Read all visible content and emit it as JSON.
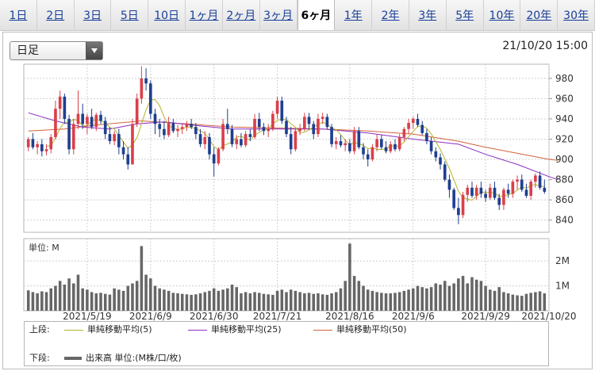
{
  "tabs": [
    {
      "label": "1日"
    },
    {
      "label": "2日"
    },
    {
      "label": "3日"
    },
    {
      "label": "5日"
    },
    {
      "label": "10日"
    },
    {
      "label": "1ヶ月"
    },
    {
      "label": "2ヶ月"
    },
    {
      "label": "3ヶ月"
    },
    {
      "label": "6ヶ月",
      "active": true
    },
    {
      "label": "1年"
    },
    {
      "label": "2年"
    },
    {
      "label": "3年"
    },
    {
      "label": "5年"
    },
    {
      "label": "10年"
    },
    {
      "label": "20年"
    },
    {
      "label": "30年"
    }
  ],
  "period_select": {
    "value": "日足"
  },
  "timestamp": "21/10/20 15:00",
  "colors": {
    "up": "#d9404a",
    "down": "#1f3f8f",
    "ma5": "#b5b52a",
    "ma25": "#8a2fc6",
    "ma50": "#d2623a",
    "volume": "#666666"
  },
  "legend": {
    "upper_label": "上段:",
    "lower_label": "下段:",
    "ma5": "単純移動平均(5)",
    "ma25": "単純移動平均(25)",
    "ma50": "単純移動平均(50)",
    "volume": "出来高 単位:(M株/口/枚)"
  },
  "chart_data": {
    "type": "candlestick",
    "price_axis": {
      "ylim": [
        828,
        994
      ],
      "ticks": [
        840,
        860,
        880,
        900,
        920,
        940,
        960,
        980
      ]
    },
    "volume_axis": {
      "unit_label": "単位: M",
      "ylim": [
        0,
        2.9
      ],
      "ticks": [
        {
          "v": 1,
          "label": "1M"
        },
        {
          "v": 2,
          "label": "2M"
        }
      ]
    },
    "x_labels": [
      "2021/5/19",
      "2021/6/9",
      "2021/6/30",
      "2021/7/21",
      "2021/8/16",
      "2021/9/6",
      "2021/9/29",
      "2021/10/20"
    ],
    "x_label_index": [
      13,
      27,
      41,
      55,
      71,
      85,
      101,
      115
    ],
    "candles": [
      {
        "o": 912,
        "h": 922,
        "l": 908,
        "c": 920,
        "v": 0.82
      },
      {
        "o": 920,
        "h": 926,
        "l": 910,
        "c": 912,
        "v": 0.75
      },
      {
        "o": 912,
        "h": 918,
        "l": 905,
        "c": 915,
        "v": 0.7
      },
      {
        "o": 915,
        "h": 920,
        "l": 903,
        "c": 908,
        "v": 0.78
      },
      {
        "o": 908,
        "h": 915,
        "l": 904,
        "c": 910,
        "v": 0.75
      },
      {
        "o": 910,
        "h": 925,
        "l": 906,
        "c": 922,
        "v": 0.9
      },
      {
        "o": 922,
        "h": 958,
        "l": 920,
        "c": 950,
        "v": 1.0
      },
      {
        "o": 950,
        "h": 968,
        "l": 940,
        "c": 962,
        "v": 1.2
      },
      {
        "o": 962,
        "h": 965,
        "l": 935,
        "c": 940,
        "v": 1.05
      },
      {
        "o": 940,
        "h": 944,
        "l": 905,
        "c": 910,
        "v": 1.3
      },
      {
        "o": 910,
        "h": 940,
        "l": 905,
        "c": 935,
        "v": 1.1
      },
      {
        "o": 935,
        "h": 968,
        "l": 930,
        "c": 945,
        "v": 1.45
      },
      {
        "o": 945,
        "h": 955,
        "l": 930,
        "c": 935,
        "v": 0.9
      },
      {
        "o": 935,
        "h": 945,
        "l": 925,
        "c": 942,
        "v": 0.85
      },
      {
        "o": 942,
        "h": 950,
        "l": 930,
        "c": 932,
        "v": 0.75
      },
      {
        "o": 932,
        "h": 946,
        "l": 928,
        "c": 944,
        "v": 0.7
      },
      {
        "o": 944,
        "h": 948,
        "l": 935,
        "c": 938,
        "v": 0.72
      },
      {
        "o": 938,
        "h": 942,
        "l": 920,
        "c": 925,
        "v": 0.68
      },
      {
        "o": 925,
        "h": 932,
        "l": 915,
        "c": 918,
        "v": 0.65
      },
      {
        "o": 918,
        "h": 928,
        "l": 914,
        "c": 925,
        "v": 0.9
      },
      {
        "o": 925,
        "h": 930,
        "l": 905,
        "c": 912,
        "v": 0.85
      },
      {
        "o": 912,
        "h": 918,
        "l": 900,
        "c": 905,
        "v": 0.8
      },
      {
        "o": 905,
        "h": 912,
        "l": 890,
        "c": 895,
        "v": 1.0
      },
      {
        "o": 895,
        "h": 940,
        "l": 895,
        "c": 935,
        "v": 1.1
      },
      {
        "o": 935,
        "h": 965,
        "l": 932,
        "c": 960,
        "v": 1.2
      },
      {
        "o": 960,
        "h": 992,
        "l": 955,
        "c": 980,
        "v": 2.6
      },
      {
        "o": 980,
        "h": 990,
        "l": 968,
        "c": 975,
        "v": 1.45
      },
      {
        "o": 975,
        "h": 978,
        "l": 940,
        "c": 945,
        "v": 1.3
      },
      {
        "o": 945,
        "h": 950,
        "l": 925,
        "c": 935,
        "v": 1.0
      },
      {
        "o": 935,
        "h": 940,
        "l": 922,
        "c": 930,
        "v": 0.9
      },
      {
        "o": 930,
        "h": 938,
        "l": 920,
        "c": 924,
        "v": 0.85
      },
      {
        "o": 924,
        "h": 942,
        "l": 922,
        "c": 936,
        "v": 0.8
      },
      {
        "o": 936,
        "h": 940,
        "l": 926,
        "c": 928,
        "v": 0.72
      },
      {
        "o": 928,
        "h": 934,
        "l": 922,
        "c": 930,
        "v": 0.7
      },
      {
        "o": 930,
        "h": 935,
        "l": 925,
        "c": 932,
        "v": 0.68
      },
      {
        "o": 932,
        "h": 938,
        "l": 928,
        "c": 935,
        "v": 0.66
      },
      {
        "o": 935,
        "h": 940,
        "l": 930,
        "c": 932,
        "v": 0.64
      },
      {
        "o": 932,
        "h": 936,
        "l": 920,
        "c": 925,
        "v": 0.66
      },
      {
        "o": 925,
        "h": 930,
        "l": 912,
        "c": 915,
        "v": 0.7
      },
      {
        "o": 915,
        "h": 928,
        "l": 910,
        "c": 922,
        "v": 0.75
      },
      {
        "o": 922,
        "h": 926,
        "l": 900,
        "c": 905,
        "v": 0.8
      },
      {
        "o": 905,
        "h": 912,
        "l": 883,
        "c": 896,
        "v": 0.9
      },
      {
        "o": 896,
        "h": 912,
        "l": 894,
        "c": 910,
        "v": 0.8
      },
      {
        "o": 910,
        "h": 940,
        "l": 908,
        "c": 935,
        "v": 0.85
      },
      {
        "o": 935,
        "h": 950,
        "l": 925,
        "c": 930,
        "v": 0.9
      },
      {
        "o": 930,
        "h": 934,
        "l": 912,
        "c": 915,
        "v": 1.05
      },
      {
        "o": 915,
        "h": 924,
        "l": 910,
        "c": 920,
        "v": 0.95
      },
      {
        "o": 920,
        "h": 926,
        "l": 912,
        "c": 914,
        "v": 0.7
      },
      {
        "o": 914,
        "h": 928,
        "l": 912,
        "c": 925,
        "v": 0.75
      },
      {
        "o": 925,
        "h": 930,
        "l": 918,
        "c": 922,
        "v": 0.7
      },
      {
        "o": 922,
        "h": 945,
        "l": 920,
        "c": 940,
        "v": 0.75
      },
      {
        "o": 940,
        "h": 946,
        "l": 928,
        "c": 932,
        "v": 0.72
      },
      {
        "o": 932,
        "h": 936,
        "l": 924,
        "c": 928,
        "v": 0.68
      },
      {
        "o": 928,
        "h": 935,
        "l": 922,
        "c": 930,
        "v": 0.66
      },
      {
        "o": 930,
        "h": 948,
        "l": 928,
        "c": 945,
        "v": 0.64
      },
      {
        "o": 945,
        "h": 962,
        "l": 940,
        "c": 958,
        "v": 0.8
      },
      {
        "o": 958,
        "h": 962,
        "l": 935,
        "c": 938,
        "v": 0.85
      },
      {
        "o": 938,
        "h": 942,
        "l": 922,
        "c": 925,
        "v": 0.75
      },
      {
        "o": 925,
        "h": 932,
        "l": 905,
        "c": 910,
        "v": 0.85
      },
      {
        "o": 910,
        "h": 930,
        "l": 908,
        "c": 928,
        "v": 0.8
      },
      {
        "o": 928,
        "h": 935,
        "l": 924,
        "c": 930,
        "v": 0.75
      },
      {
        "o": 930,
        "h": 946,
        "l": 928,
        "c": 942,
        "v": 0.7
      },
      {
        "o": 942,
        "h": 946,
        "l": 930,
        "c": 935,
        "v": 0.72
      },
      {
        "o": 935,
        "h": 938,
        "l": 920,
        "c": 925,
        "v": 0.68
      },
      {
        "o": 925,
        "h": 945,
        "l": 922,
        "c": 940,
        "v": 0.7
      },
      {
        "o": 940,
        "h": 946,
        "l": 935,
        "c": 942,
        "v": 0.66
      },
      {
        "o": 942,
        "h": 945,
        "l": 930,
        "c": 932,
        "v": 0.64
      },
      {
        "o": 932,
        "h": 935,
        "l": 912,
        "c": 915,
        "v": 0.7
      },
      {
        "o": 915,
        "h": 922,
        "l": 910,
        "c": 918,
        "v": 0.75
      },
      {
        "o": 918,
        "h": 924,
        "l": 912,
        "c": 914,
        "v": 0.9
      },
      {
        "o": 914,
        "h": 920,
        "l": 908,
        "c": 916,
        "v": 1.2
      },
      {
        "o": 916,
        "h": 920,
        "l": 906,
        "c": 908,
        "v": 2.7
      },
      {
        "o": 908,
        "h": 932,
        "l": 905,
        "c": 928,
        "v": 1.4
      },
      {
        "o": 928,
        "h": 932,
        "l": 910,
        "c": 912,
        "v": 1.2
      },
      {
        "o": 912,
        "h": 916,
        "l": 900,
        "c": 905,
        "v": 1.0
      },
      {
        "o": 905,
        "h": 910,
        "l": 893,
        "c": 900,
        "v": 0.85
      },
      {
        "o": 900,
        "h": 915,
        "l": 898,
        "c": 912,
        "v": 0.8
      },
      {
        "o": 912,
        "h": 925,
        "l": 908,
        "c": 920,
        "v": 0.75
      },
      {
        "o": 920,
        "h": 924,
        "l": 910,
        "c": 912,
        "v": 0.72
      },
      {
        "o": 912,
        "h": 918,
        "l": 906,
        "c": 908,
        "v": 0.7
      },
      {
        "o": 908,
        "h": 918,
        "l": 906,
        "c": 915,
        "v": 0.7
      },
      {
        "o": 915,
        "h": 920,
        "l": 908,
        "c": 910,
        "v": 0.72
      },
      {
        "o": 910,
        "h": 925,
        "l": 908,
        "c": 922,
        "v": 0.75
      },
      {
        "o": 922,
        "h": 932,
        "l": 918,
        "c": 930,
        "v": 0.8
      },
      {
        "o": 930,
        "h": 940,
        "l": 925,
        "c": 936,
        "v": 0.85
      },
      {
        "o": 936,
        "h": 942,
        "l": 930,
        "c": 940,
        "v": 0.9
      },
      {
        "o": 940,
        "h": 945,
        "l": 932,
        "c": 934,
        "v": 1.0
      },
      {
        "o": 934,
        "h": 938,
        "l": 924,
        "c": 926,
        "v": 0.95
      },
      {
        "o": 926,
        "h": 930,
        "l": 915,
        "c": 918,
        "v": 0.9
      },
      {
        "o": 918,
        "h": 922,
        "l": 905,
        "c": 908,
        "v": 0.95
      },
      {
        "o": 908,
        "h": 912,
        "l": 898,
        "c": 902,
        "v": 1.1
      },
      {
        "o": 902,
        "h": 906,
        "l": 890,
        "c": 895,
        "v": 1.05
      },
      {
        "o": 895,
        "h": 898,
        "l": 878,
        "c": 880,
        "v": 1.2
      },
      {
        "o": 880,
        "h": 885,
        "l": 862,
        "c": 870,
        "v": 1.0
      },
      {
        "o": 870,
        "h": 872,
        "l": 850,
        "c": 852,
        "v": 1.1
      },
      {
        "o": 852,
        "h": 862,
        "l": 836,
        "c": 845,
        "v": 1.3
      },
      {
        "o": 845,
        "h": 868,
        "l": 842,
        "c": 865,
        "v": 1.4
      },
      {
        "o": 865,
        "h": 875,
        "l": 858,
        "c": 872,
        "v": 1.1
      },
      {
        "o": 872,
        "h": 878,
        "l": 862,
        "c": 864,
        "v": 1.35
      },
      {
        "o": 864,
        "h": 875,
        "l": 860,
        "c": 872,
        "v": 1.25
      },
      {
        "o": 872,
        "h": 878,
        "l": 862,
        "c": 866,
        "v": 1.2
      },
      {
        "o": 866,
        "h": 870,
        "l": 858,
        "c": 862,
        "v": 1.0
      },
      {
        "o": 862,
        "h": 876,
        "l": 860,
        "c": 872,
        "v": 0.85
      },
      {
        "o": 872,
        "h": 878,
        "l": 860,
        "c": 862,
        "v": 0.8
      },
      {
        "o": 862,
        "h": 866,
        "l": 850,
        "c": 855,
        "v": 0.95
      },
      {
        "o": 855,
        "h": 872,
        "l": 850,
        "c": 870,
        "v": 0.75
      },
      {
        "o": 870,
        "h": 876,
        "l": 862,
        "c": 866,
        "v": 0.7
      },
      {
        "o": 866,
        "h": 880,
        "l": 862,
        "c": 878,
        "v": 0.65
      },
      {
        "o": 878,
        "h": 884,
        "l": 870,
        "c": 880,
        "v": 0.62
      },
      {
        "o": 880,
        "h": 885,
        "l": 868,
        "c": 870,
        "v": 0.6
      },
      {
        "o": 870,
        "h": 876,
        "l": 862,
        "c": 864,
        "v": 0.68
      },
      {
        "o": 864,
        "h": 880,
        "l": 860,
        "c": 878,
        "v": 0.72
      },
      {
        "o": 878,
        "h": 886,
        "l": 872,
        "c": 884,
        "v": 0.75
      },
      {
        "o": 884,
        "h": 888,
        "l": 870,
        "c": 872,
        "v": 0.78
      },
      {
        "o": 872,
        "h": 880,
        "l": 866,
        "c": 868,
        "v": 0.7
      }
    ],
    "ma25": [
      [
        0,
        946
      ],
      [
        6,
        938
      ],
      [
        12,
        932
      ],
      [
        18,
        930
      ],
      [
        24,
        935
      ],
      [
        30,
        937
      ],
      [
        38,
        933
      ],
      [
        45,
        930
      ],
      [
        55,
        930
      ],
      [
        65,
        930
      ],
      [
        75,
        926
      ],
      [
        85,
        920
      ],
      [
        95,
        915
      ],
      [
        101,
        905
      ],
      [
        108,
        895
      ],
      [
        115,
        883
      ],
      [
        117,
        880
      ]
    ],
    "ma50": [
      [
        0,
        928
      ],
      [
        8,
        930
      ],
      [
        15,
        934
      ],
      [
        25,
        938
      ],
      [
        35,
        935
      ],
      [
        45,
        932
      ],
      [
        55,
        931
      ],
      [
        65,
        930
      ],
      [
        75,
        928
      ],
      [
        85,
        925
      ],
      [
        95,
        918
      ],
      [
        101,
        912
      ],
      [
        108,
        906
      ],
      [
        115,
        900
      ],
      [
        117,
        899
      ]
    ]
  }
}
